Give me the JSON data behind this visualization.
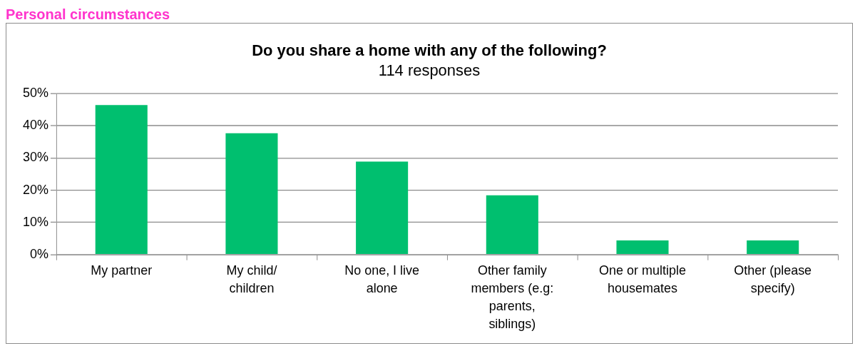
{
  "chart_data": {
    "type": "bar",
    "title": "Do you share a home with any of the following?",
    "subtitle": "114 responses",
    "annotations": [
      "Personal circumstances"
    ],
    "categories": [
      "My partner",
      "My child/ children",
      "No one, I live alone",
      "Other family members (e.g: parents, siblings)",
      "One or multiple housemates",
      "Other (please specify)"
    ],
    "values": [
      46.5,
      37.7,
      28.9,
      18.4,
      4.4,
      4.4
    ],
    "color": "#00bf6f",
    "ylim": [
      0,
      50
    ],
    "yticks": [
      {
        "value": 0,
        "label": "0%"
      },
      {
        "value": 10,
        "label": "10%"
      },
      {
        "value": 20,
        "label": "20%"
      },
      {
        "value": 30,
        "label": "30%"
      },
      {
        "value": 40,
        "label": "40%"
      },
      {
        "value": 50,
        "label": "50%"
      }
    ],
    "grid": "y",
    "legend": false
  }
}
